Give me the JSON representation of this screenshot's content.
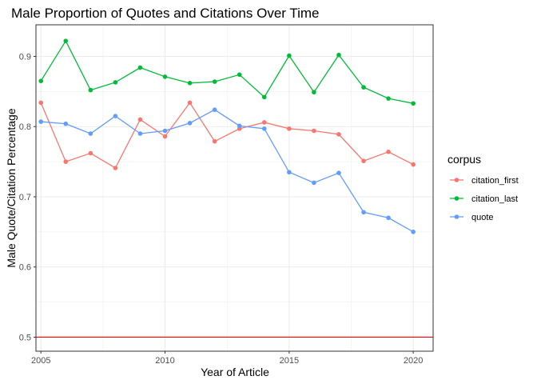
{
  "chart_data": {
    "type": "line",
    "title": "Male Proportion of Quotes and Citations Over Time",
    "xlabel": "Year of Article",
    "ylabel": "Male Quote/Citation Percentage",
    "xlim": [
      2004.8,
      2020.8
    ],
    "ylim": [
      0.48,
      0.945
    ],
    "x_ticks": [
      2005,
      2010,
      2015,
      2020
    ],
    "y_ticks": [
      0.5,
      0.6,
      0.7,
      0.8,
      0.9
    ],
    "y_tick_labels": [
      "0.5",
      "0.6",
      "0.7",
      "0.8",
      "0.9"
    ],
    "x_tick_labels": [
      "2005",
      "2010",
      "2015",
      "2020"
    ],
    "grid": true,
    "reference_line": {
      "y": 0.5,
      "color": "#ff0000"
    },
    "legend": {
      "title": "corpus",
      "placement": "right"
    },
    "x": [
      2005,
      2006,
      2007,
      2008,
      2009,
      2010,
      2011,
      2012,
      2013,
      2014,
      2015,
      2016,
      2017,
      2018,
      2019,
      2020
    ],
    "series": [
      {
        "name": "citation_first",
        "color": "#F8766D",
        "values": [
          0.834,
          0.75,
          0.762,
          0.741,
          0.81,
          0.786,
          0.834,
          0.779,
          0.797,
          0.806,
          0.797,
          0.794,
          0.789,
          0.751,
          0.764,
          0.746
        ]
      },
      {
        "name": "citation_last",
        "color": "#00BA38",
        "values": [
          0.865,
          0.922,
          0.852,
          0.863,
          0.884,
          0.871,
          0.862,
          0.864,
          0.874,
          0.842,
          0.901,
          0.849,
          0.902,
          0.856,
          0.84,
          0.833
        ]
      },
      {
        "name": "quote",
        "color": "#619CFF",
        "values": [
          0.807,
          0.804,
          0.79,
          0.815,
          0.79,
          0.794,
          0.805,
          0.824,
          0.801,
          0.797,
          0.735,
          0.72,
          0.734,
          0.678,
          0.67,
          0.65
        ]
      }
    ]
  }
}
